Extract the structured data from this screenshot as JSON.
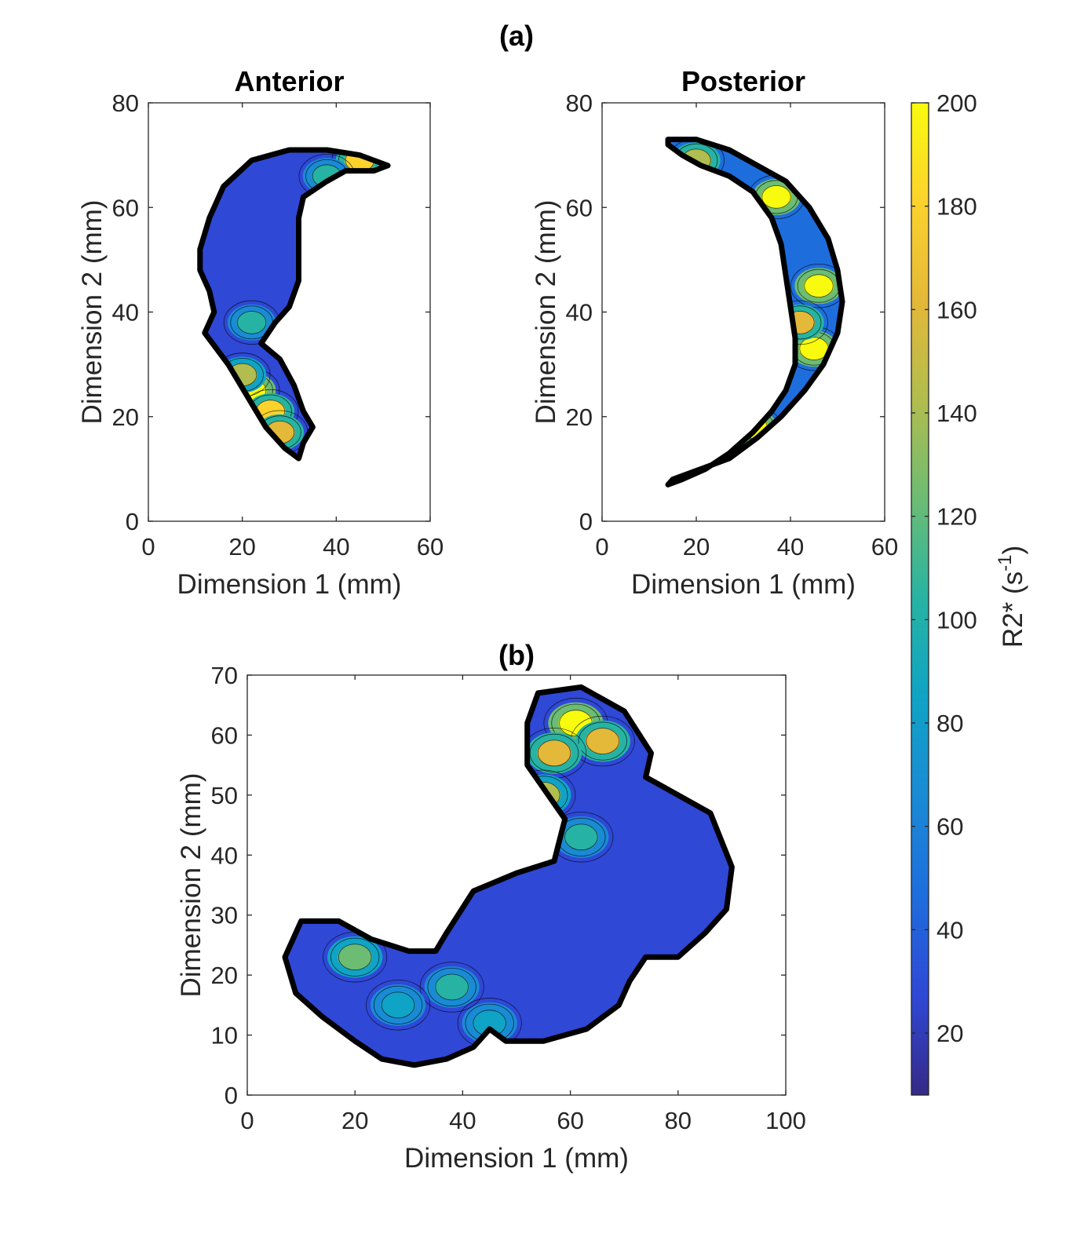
{
  "figure": {
    "label_a": "(a)",
    "label_b": "(b)"
  },
  "colors": {
    "parula": [
      "#352a87",
      "#2f48d6",
      "#1e6ddd",
      "#1a8ad5",
      "#0fa3c6",
      "#27b3a3",
      "#6cbc74",
      "#b1bd4e",
      "#e4b838",
      "#fcd22c",
      "#f9fb0e"
    ],
    "outline": "#000000",
    "contour_line": "#000000"
  },
  "chart_data": [
    {
      "type": "heatmap",
      "title": "Anterior",
      "xlabel": "Dimension 1 (mm)",
      "ylabel": "Dimension 2 (mm)",
      "xlim": [
        0,
        60
      ],
      "ylim": [
        0,
        80
      ],
      "xticks": [
        0,
        20,
        40,
        60
      ],
      "yticks": [
        0,
        20,
        40,
        60,
        80
      ],
      "grid": false,
      "region_outline": [
        [
          13,
          58
        ],
        [
          16,
          64
        ],
        [
          22,
          69
        ],
        [
          30,
          71
        ],
        [
          38,
          71
        ],
        [
          45,
          70
        ],
        [
          51,
          68
        ],
        [
          48,
          67
        ],
        [
          42,
          67
        ],
        [
          38,
          65
        ],
        [
          33,
          62
        ],
        [
          32,
          58
        ],
        [
          32,
          52
        ],
        [
          32,
          46
        ],
        [
          30,
          41
        ],
        [
          27,
          38
        ],
        [
          24,
          34
        ],
        [
          28,
          31
        ],
        [
          31,
          26
        ],
        [
          33,
          21
        ],
        [
          35,
          18
        ],
        [
          33,
          15
        ],
        [
          32,
          12
        ],
        [
          29,
          14
        ],
        [
          25,
          18
        ],
        [
          21,
          24
        ],
        [
          17,
          30
        ],
        [
          12,
          36
        ],
        [
          14,
          40
        ],
        [
          13,
          44
        ],
        [
          11,
          48
        ],
        [
          11,
          52
        ],
        [
          12,
          55
        ]
      ],
      "hotspots": [
        {
          "x": 22,
          "y": 25,
          "r2star": 200
        },
        {
          "x": 26,
          "y": 21,
          "r2star": 190
        },
        {
          "x": 28,
          "y": 17,
          "r2star": 170
        },
        {
          "x": 20,
          "y": 28,
          "r2star": 150
        },
        {
          "x": 45,
          "y": 69,
          "r2star": 180
        },
        {
          "x": 38,
          "y": 66,
          "r2star": 110
        },
        {
          "x": 22,
          "y": 38,
          "r2star": 110
        }
      ],
      "background_r2star": 35
    },
    {
      "type": "heatmap",
      "title": "Posterior",
      "xlabel": "Dimension 1 (mm)",
      "ylabel": "Dimension 2 (mm)",
      "xlim": [
        0,
        60
      ],
      "ylim": [
        0,
        80
      ],
      "xticks": [
        0,
        20,
        40,
        60
      ],
      "yticks": [
        0,
        20,
        40,
        60,
        80
      ],
      "grid": false,
      "region_outline": [
        [
          14,
          73
        ],
        [
          20,
          73
        ],
        [
          27,
          71
        ],
        [
          33,
          68
        ],
        [
          39,
          65
        ],
        [
          44,
          60
        ],
        [
          48,
          54
        ],
        [
          50,
          48
        ],
        [
          51,
          42
        ],
        [
          50,
          36
        ],
        [
          47,
          30
        ],
        [
          43,
          25
        ],
        [
          38,
          20
        ],
        [
          33,
          16
        ],
        [
          27,
          12
        ],
        [
          21,
          10
        ],
        [
          15,
          8
        ],
        [
          14,
          7
        ],
        [
          17,
          8
        ],
        [
          22,
          10
        ],
        [
          27,
          13
        ],
        [
          32,
          17
        ],
        [
          36,
          21
        ],
        [
          39,
          25
        ],
        [
          41,
          30
        ],
        [
          41,
          35
        ],
        [
          40,
          41
        ],
        [
          39,
          47
        ],
        [
          38,
          53
        ],
        [
          36,
          58
        ],
        [
          32,
          63
        ],
        [
          27,
          66
        ],
        [
          21,
          68
        ],
        [
          17,
          70
        ],
        [
          14,
          72
        ]
      ],
      "hotspots": [
        {
          "x": 37,
          "y": 62,
          "r2star": 200
        },
        {
          "x": 46,
          "y": 45,
          "r2star": 200
        },
        {
          "x": 45,
          "y": 33,
          "r2star": 200
        },
        {
          "x": 32,
          "y": 18,
          "r2star": 200
        },
        {
          "x": 26,
          "y": 14,
          "r2star": 170
        },
        {
          "x": 42,
          "y": 38,
          "r2star": 160
        },
        {
          "x": 20,
          "y": 69,
          "r2star": 150
        }
      ],
      "background_r2star": 55
    },
    {
      "type": "heatmap",
      "title": "",
      "xlabel": "Dimension 1 (mm)",
      "ylabel": "Dimension 2 (mm)",
      "xlim": [
        0,
        100
      ],
      "ylim": [
        0,
        70
      ],
      "xticks": [
        0,
        20,
        40,
        60,
        80,
        100
      ],
      "yticks": [
        0,
        10,
        20,
        30,
        40,
        50,
        60,
        70
      ],
      "grid": false,
      "region_outline": [
        [
          7,
          23
        ],
        [
          10,
          29
        ],
        [
          17,
          29
        ],
        [
          23,
          26
        ],
        [
          30,
          24
        ],
        [
          35,
          24
        ],
        [
          37,
          27
        ],
        [
          42,
          34
        ],
        [
          50,
          37
        ],
        [
          57,
          39
        ],
        [
          59,
          46
        ],
        [
          52,
          55
        ],
        [
          52,
          62
        ],
        [
          54,
          67
        ],
        [
          62,
          68
        ],
        [
          70,
          64
        ],
        [
          75,
          57
        ],
        [
          74,
          53
        ],
        [
          78,
          51
        ],
        [
          86,
          47
        ],
        [
          90,
          38
        ],
        [
          89,
          31
        ],
        [
          85,
          27
        ],
        [
          80,
          23
        ],
        [
          74,
          23
        ],
        [
          71,
          19
        ],
        [
          69,
          15
        ],
        [
          63,
          11
        ],
        [
          55,
          9
        ],
        [
          48,
          9
        ],
        [
          45,
          11
        ],
        [
          42,
          8
        ],
        [
          37,
          6
        ],
        [
          31,
          5
        ],
        [
          25,
          6
        ],
        [
          20,
          9
        ],
        [
          14,
          13
        ],
        [
          9,
          17
        ]
      ],
      "hotspots": [
        {
          "x": 61,
          "y": 62,
          "r2star": 200
        },
        {
          "x": 66,
          "y": 59,
          "r2star": 160
        },
        {
          "x": 57,
          "y": 57,
          "r2star": 160
        },
        {
          "x": 55,
          "y": 50,
          "r2star": 150
        },
        {
          "x": 20,
          "y": 23,
          "r2star": 120
        },
        {
          "x": 38,
          "y": 18,
          "r2star": 110
        },
        {
          "x": 62,
          "y": 43,
          "r2star": 100
        },
        {
          "x": 28,
          "y": 15,
          "r2star": 90
        },
        {
          "x": 45,
          "y": 12,
          "r2star": 85
        }
      ],
      "background_r2star": 35
    }
  ],
  "colorbar": {
    "label": "R2* (s",
    "label_superscript": "-1",
    "label_close": ")",
    "range": [
      8,
      200
    ],
    "ticks": [
      "20",
      "40",
      "60",
      "80",
      "100",
      "120",
      "140",
      "160",
      "180",
      "200"
    ],
    "tick_values": [
      20,
      40,
      60,
      80,
      100,
      120,
      140,
      160,
      180,
      200
    ]
  }
}
